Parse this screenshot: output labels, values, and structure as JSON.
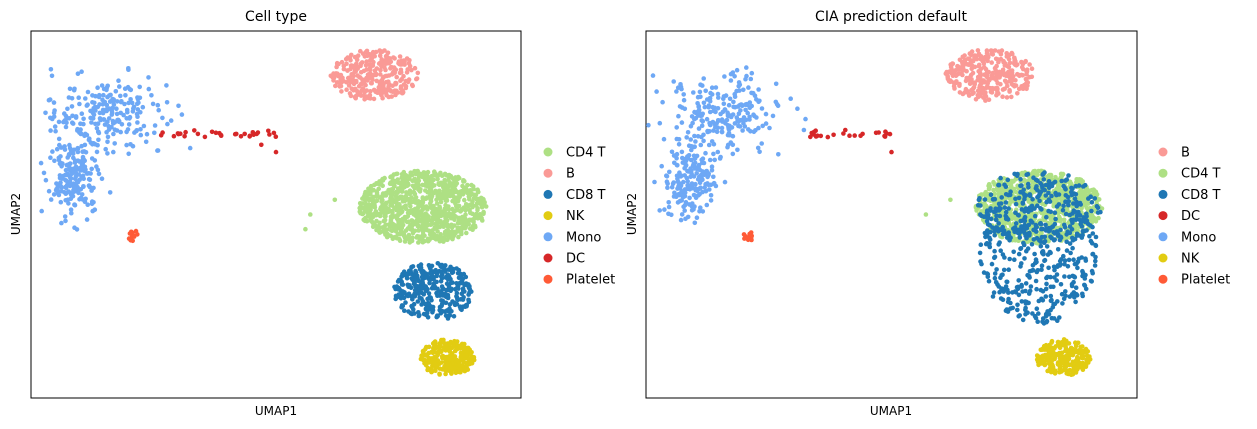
{
  "chart_data": [
    {
      "type": "scatter",
      "title": "Cell type",
      "xlabel": "UMAP1",
      "ylabel": "UMAP2",
      "xlim": [
        0,
        100
      ],
      "ylim": [
        0,
        100
      ],
      "grid": false,
      "ticks": false,
      "legend_position": "right",
      "legend": [
        {
          "label": "CD4 T",
          "color": "#aee084"
        },
        {
          "label": "B",
          "color": "#fa9a96"
        },
        {
          "label": "CD8 T",
          "color": "#1f77b4"
        },
        {
          "label": "NK",
          "color": "#e2cc12"
        },
        {
          "label": "Mono",
          "color": "#6ea8f5"
        },
        {
          "label": "DC",
          "color": "#d62728"
        },
        {
          "label": "Platelet",
          "color": "#ff5a36"
        }
      ],
      "clusters": [
        {
          "label": "Mono",
          "cx": 14,
          "cy": 71,
          "rx": 11,
          "ry": 19,
          "n": 420,
          "shape": "mono"
        },
        {
          "label": "B",
          "cx": 70,
          "cy": 88,
          "rx": 9,
          "ry": 7,
          "n": 300
        },
        {
          "label": "DC",
          "shape": "line",
          "x1": 26,
          "y1": 72,
          "x2": 50,
          "y2": 72,
          "n": 30,
          "extra": [
            [
              50,
              67
            ],
            [
              47,
              69
            ]
          ]
        },
        {
          "label": "Platelet",
          "cx": 21,
          "cy": 44,
          "rx": 1.2,
          "ry": 1.6,
          "n": 12
        },
        {
          "label": "CD4 T",
          "cx": 80,
          "cy": 52,
          "rx": 13,
          "ry": 10,
          "n": 900,
          "extra": [
            [
              57,
              50
            ],
            [
              62,
              54
            ],
            [
              56,
              46
            ]
          ]
        },
        {
          "label": "CD8 T",
          "cx": 82,
          "cy": 29,
          "rx": 8,
          "ry": 8,
          "n": 320
        },
        {
          "label": "NK",
          "cx": 85,
          "cy": 11,
          "rx": 5.5,
          "ry": 5,
          "n": 250
        }
      ]
    },
    {
      "type": "scatter",
      "title": "CIA prediction default",
      "xlabel": "UMAP1",
      "ylabel": "UMAP2",
      "xlim": [
        0,
        100
      ],
      "ylim": [
        0,
        100
      ],
      "grid": false,
      "ticks": false,
      "legend_position": "right",
      "legend": [
        {
          "label": "B",
          "color": "#fa9a96"
        },
        {
          "label": "CD4 T",
          "color": "#aee084"
        },
        {
          "label": "CD8 T",
          "color": "#1f77b4"
        },
        {
          "label": "DC",
          "color": "#d62728"
        },
        {
          "label": "Mono",
          "color": "#6ea8f5"
        },
        {
          "label": "NK",
          "color": "#e2cc12"
        },
        {
          "label": "Platelet",
          "color": "#ff5a36"
        }
      ],
      "clusters": [
        {
          "label": "Mono",
          "cx": 14,
          "cy": 71,
          "rx": 11,
          "ry": 19,
          "n": 420,
          "shape": "mono"
        },
        {
          "label": "B",
          "cx": 70,
          "cy": 88,
          "rx": 9,
          "ry": 7,
          "n": 300
        },
        {
          "label": "DC",
          "shape": "line",
          "x1": 33,
          "y1": 72,
          "x2": 50,
          "y2": 72,
          "n": 24,
          "extra": [
            [
              50,
              67
            ]
          ]
        },
        {
          "label": "Platelet",
          "cx": 21,
          "cy": 44,
          "rx": 1.2,
          "ry": 1.6,
          "n": 12
        },
        {
          "label": "CD4 T",
          "cx": 80,
          "cy": 52,
          "rx": 13,
          "ry": 10,
          "n": 820,
          "extra": [
            [
              57,
              50
            ],
            [
              62,
              54
            ]
          ]
        },
        {
          "label": "CD8 T",
          "cx": 80,
          "cy": 40,
          "rx": 12,
          "ry": 20,
          "n": 420
        },
        {
          "label": "NK",
          "cx": 85,
          "cy": 11,
          "rx": 5.5,
          "ry": 5,
          "n": 230
        }
      ]
    }
  ]
}
